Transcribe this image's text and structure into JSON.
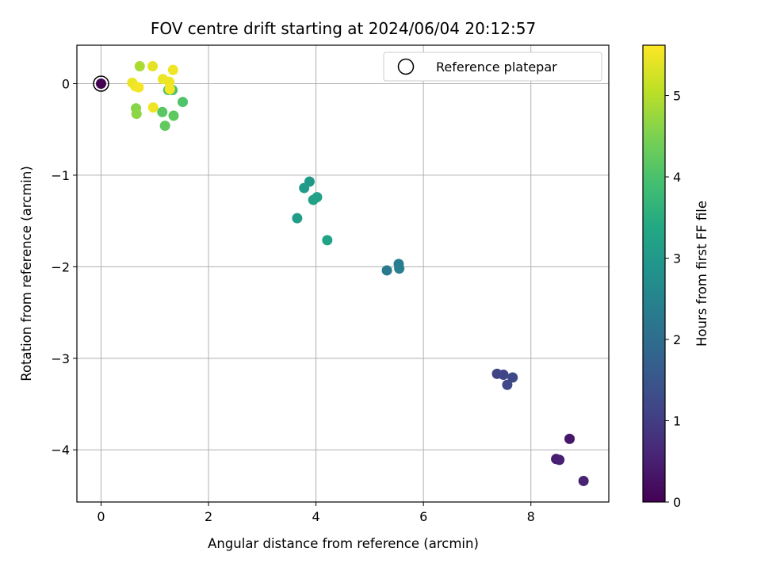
{
  "chart_data": {
    "type": "scatter",
    "title": "FOV centre drift starting at 2024/06/04 20:12:57",
    "xlabel": "Angular distance from reference (arcmin)",
    "ylabel": "Rotation from reference (arcmin)",
    "xlim": [
      -0.45,
      9.45
    ],
    "ylim": [
      -4.57,
      0.42
    ],
    "xticks": [
      0,
      2,
      4,
      6,
      8
    ],
    "xtick_labels": [
      "0",
      "2",
      "4",
      "6",
      "8"
    ],
    "yticks": [
      0,
      -1,
      -2,
      -3,
      -4
    ],
    "ytick_labels": [
      "0",
      "−1",
      "−2",
      "−3",
      "−4"
    ],
    "grid": true,
    "legend": {
      "placement": "top-right",
      "entries": [
        "Reference platepar"
      ]
    },
    "colorbar": {
      "label": "Hours from first FF file",
      "range": [
        0,
        5.62
      ],
      "ticks": [
        0,
        1,
        2,
        3,
        4,
        5
      ],
      "tick_labels": [
        "0",
        "1",
        "2",
        "3",
        "4",
        "5"
      ],
      "colormap": "viridis"
    },
    "reference": {
      "x": 0,
      "y": 0
    },
    "points": [
      {
        "x": 0.0,
        "y": 0.0,
        "c": 0.0
      },
      {
        "x": 8.72,
        "y": -3.88,
        "c": 0.35
      },
      {
        "x": 8.47,
        "y": -4.1,
        "c": 0.45
      },
      {
        "x": 8.53,
        "y": -4.11,
        "c": 0.5
      },
      {
        "x": 8.98,
        "y": -4.34,
        "c": 0.55
      },
      {
        "x": 7.37,
        "y": -3.17,
        "c": 1.1
      },
      {
        "x": 7.49,
        "y": -3.18,
        "c": 1.15
      },
      {
        "x": 7.56,
        "y": -3.29,
        "c": 1.2
      },
      {
        "x": 7.66,
        "y": -3.21,
        "c": 1.25
      },
      {
        "x": 5.32,
        "y": -2.04,
        "c": 2.3
      },
      {
        "x": 5.54,
        "y": -1.97,
        "c": 2.35
      },
      {
        "x": 5.55,
        "y": -2.02,
        "c": 2.4
      },
      {
        "x": 3.88,
        "y": -1.07,
        "c": 3.0
      },
      {
        "x": 3.78,
        "y": -1.14,
        "c": 3.05
      },
      {
        "x": 3.65,
        "y": -1.47,
        "c": 3.1
      },
      {
        "x": 3.95,
        "y": -1.27,
        "c": 3.15
      },
      {
        "x": 4.02,
        "y": -1.24,
        "c": 3.2
      },
      {
        "x": 4.21,
        "y": -1.71,
        "c": 3.25
      },
      {
        "x": 1.33,
        "y": -0.07,
        "c": 4.0
      },
      {
        "x": 1.52,
        "y": -0.2,
        "c": 4.05
      },
      {
        "x": 1.25,
        "y": -0.07,
        "c": 4.1
      },
      {
        "x": 1.14,
        "y": -0.31,
        "c": 4.15
      },
      {
        "x": 1.35,
        "y": -0.35,
        "c": 4.2
      },
      {
        "x": 1.19,
        "y": -0.46,
        "c": 4.25
      },
      {
        "x": 0.65,
        "y": -0.27,
        "c": 4.6
      },
      {
        "x": 0.66,
        "y": -0.33,
        "c": 4.65
      },
      {
        "x": 0.72,
        "y": 0.19,
        "c": 4.9
      },
      {
        "x": 0.96,
        "y": 0.19,
        "c": 5.4
      },
      {
        "x": 1.34,
        "y": 0.15,
        "c": 5.5
      },
      {
        "x": 1.15,
        "y": 0.05,
        "c": 5.45
      },
      {
        "x": 1.27,
        "y": 0.02,
        "c": 5.5
      },
      {
        "x": 0.58,
        "y": 0.01,
        "c": 5.45
      },
      {
        "x": 0.64,
        "y": -0.03,
        "c": 5.5
      },
      {
        "x": 0.7,
        "y": -0.04,
        "c": 5.55
      },
      {
        "x": 0.97,
        "y": -0.26,
        "c": 5.5
      },
      {
        "x": 1.28,
        "y": -0.06,
        "c": 5.55
      }
    ]
  }
}
